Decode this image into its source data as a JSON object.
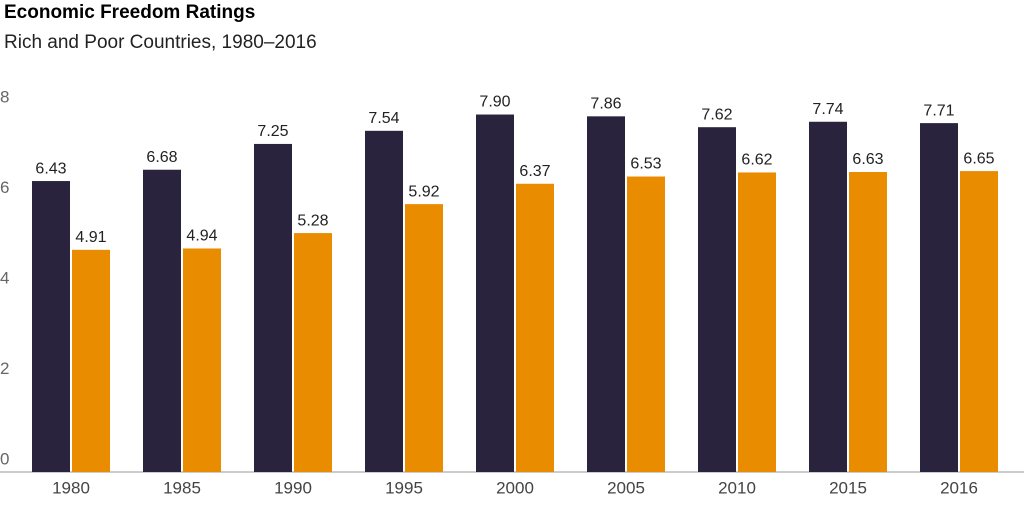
{
  "chart_data": {
    "type": "bar",
    "title": "Economic Freedom Ratings",
    "subtitle": "Rich and Poor Countries, 1980–2016",
    "categories": [
      "1980",
      "1985",
      "1990",
      "1995",
      "2000",
      "2005",
      "2010",
      "2015",
      "2016"
    ],
    "series": [
      {
        "color": "#29233d",
        "values": [
          6.43,
          6.68,
          7.25,
          7.54,
          7.9,
          7.86,
          7.62,
          7.74,
          7.71
        ],
        "value_labels": [
          "6.43",
          "6.68",
          "7.25",
          "7.54",
          "7.90",
          "7.86",
          "7.62",
          "7.74",
          "7.71"
        ]
      },
      {
        "color": "#ea8c00",
        "values": [
          4.91,
          4.94,
          5.28,
          5.92,
          6.37,
          6.53,
          6.62,
          6.63,
          6.65
        ],
        "value_labels": [
          "4.91",
          "4.94",
          "5.28",
          "5.92",
          "6.37",
          "6.53",
          "6.62",
          "6.63",
          "6.65"
        ]
      }
    ],
    "ylim": [
      0,
      8
    ],
    "yticks": [
      0,
      2,
      4,
      6,
      8
    ],
    "grid": false
  }
}
